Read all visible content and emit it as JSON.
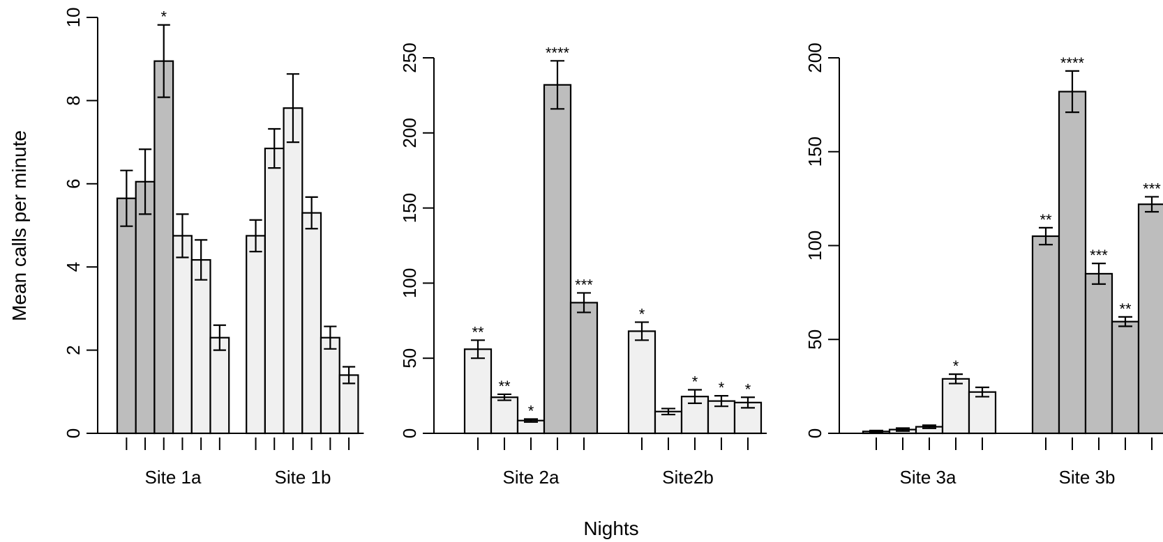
{
  "colors": {
    "dark": "#bdbdbd",
    "light": "#f0f0f0",
    "stroke": "#000000"
  },
  "ylabel": "Mean calls per minute",
  "xlabel": "Nights",
  "chart_data": [
    {
      "type": "bar",
      "panel": "Site 1",
      "ylim": [
        0,
        10
      ],
      "yticks": [
        "0",
        "2",
        "4",
        "6",
        "8",
        "10"
      ],
      "groups": [
        {
          "label": "Site 1a",
          "bars": [
            {
              "value": 5.65,
              "err": 0.67,
              "shade": "dark",
              "sig": ""
            },
            {
              "value": 6.05,
              "err": 0.78,
              "shade": "dark",
              "sig": ""
            },
            {
              "value": 8.95,
              "err": 0.87,
              "shade": "dark",
              "sig": "*"
            },
            {
              "value": 4.75,
              "err": 0.52,
              "shade": "light",
              "sig": ""
            },
            {
              "value": 4.17,
              "err": 0.48,
              "shade": "light",
              "sig": ""
            },
            {
              "value": 2.3,
              "err": 0.3,
              "shade": "light",
              "sig": ""
            }
          ]
        },
        {
          "label": "Site 1b",
          "bars": [
            {
              "value": 4.75,
              "err": 0.38,
              "shade": "light",
              "sig": ""
            },
            {
              "value": 6.85,
              "err": 0.47,
              "shade": "light",
              "sig": ""
            },
            {
              "value": 7.82,
              "err": 0.82,
              "shade": "light",
              "sig": ""
            },
            {
              "value": 5.3,
              "err": 0.38,
              "shade": "light",
              "sig": ""
            },
            {
              "value": 2.3,
              "err": 0.27,
              "shade": "light",
              "sig": ""
            },
            {
              "value": 1.4,
              "err": 0.2,
              "shade": "light",
              "sig": ""
            }
          ]
        }
      ]
    },
    {
      "type": "bar",
      "panel": "Site 2",
      "ylim": [
        0,
        250
      ],
      "yticks": [
        "0",
        "50",
        "100",
        "150",
        "200",
        "250"
      ],
      "groups": [
        {
          "label": "Site 2a",
          "bars": [
            {
              "value": 56,
              "err": 6,
              "shade": "light",
              "sig": "**"
            },
            {
              "value": 24,
              "err": 2,
              "shade": "light",
              "sig": "**"
            },
            {
              "value": 8.5,
              "err": 1,
              "shade": "light",
              "sig": "*"
            },
            {
              "value": 232,
              "err": 16,
              "shade": "dark",
              "sig": "****"
            },
            {
              "value": 87,
              "err": 6.5,
              "shade": "dark",
              "sig": "***"
            }
          ]
        },
        {
          "label": "Site2b",
          "bars": [
            {
              "value": 68,
              "err": 6,
              "shade": "light",
              "sig": "*"
            },
            {
              "value": 14.5,
              "err": 2,
              "shade": "light",
              "sig": ""
            },
            {
              "value": 24.5,
              "err": 4.5,
              "shade": "light",
              "sig": "*"
            },
            {
              "value": 21.5,
              "err": 3.5,
              "shade": "light",
              "sig": "*"
            },
            {
              "value": 20.5,
              "err": 3.5,
              "shade": "light",
              "sig": "*"
            }
          ]
        }
      ]
    },
    {
      "type": "bar",
      "panel": "Site 3",
      "ylim": [
        0,
        200
      ],
      "yticks": [
        "0",
        "50",
        "100",
        "150",
        "200"
      ],
      "groups": [
        {
          "label": "Site 3a",
          "bars": [
            {
              "value": 1,
              "err": 0.5,
              "shade": "light",
              "sig": ""
            },
            {
              "value": 2,
              "err": 0.8,
              "shade": "light",
              "sig": ""
            },
            {
              "value": 3.5,
              "err": 0.8,
              "shade": "light",
              "sig": ""
            },
            {
              "value": 29,
              "err": 2.5,
              "shade": "light",
              "sig": "*"
            },
            {
              "value": 22,
              "err": 2.5,
              "shade": "light",
              "sig": ""
            }
          ]
        },
        {
          "label": "Site 3b",
          "bars": [
            {
              "value": 105,
              "err": 4.5,
              "shade": "dark",
              "sig": "**"
            },
            {
              "value": 182,
              "err": 11,
              "shade": "dark",
              "sig": "****"
            },
            {
              "value": 85,
              "err": 5.5,
              "shade": "dark",
              "sig": "***"
            },
            {
              "value": 59.5,
              "err": 2.5,
              "shade": "dark",
              "sig": "**"
            },
            {
              "value": 122,
              "err": 4,
              "shade": "dark",
              "sig": "***"
            }
          ]
        }
      ]
    }
  ]
}
